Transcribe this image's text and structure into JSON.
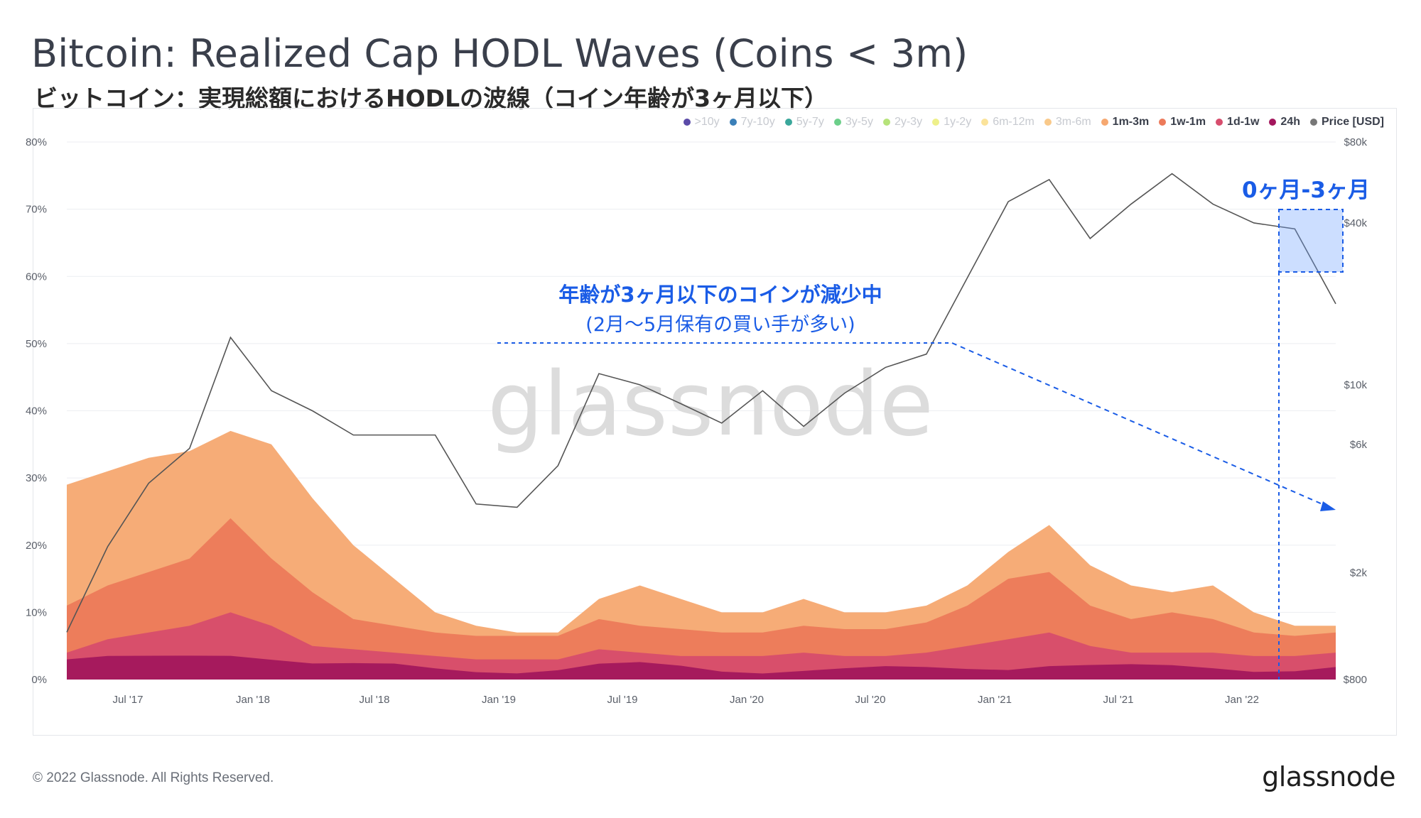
{
  "title": "Bitcoin: Realized Cap HODL Waves (Coins < 3m)",
  "subtitle": "ビットコイン：実現総額におけるHODLの波線（コイン年齢が3ヶ月以下）",
  "watermark": "glassnode",
  "footer": {
    "copyright": "© 2022 Glassnode. All Rights Reserved.",
    "logo": "glassnode"
  },
  "annotations": {
    "main_line1": "年齢が3ヶ月以下のコインが減少中",
    "main_line2": "(2月〜5月保有の買い手が多い)",
    "box_label": "0ヶ月-3ヶ月",
    "accent_color": "#1a5ce6"
  },
  "legend": [
    {
      "label": ">10y",
      "color": "#5b4ba8",
      "active": false
    },
    {
      "label": "7y-10y",
      "color": "#3b7fb8",
      "active": false
    },
    {
      "label": "5y-7y",
      "color": "#3aa79b",
      "active": false
    },
    {
      "label": "3y-5y",
      "color": "#6ccf8a",
      "active": false
    },
    {
      "label": "2y-3y",
      "color": "#b6e37a",
      "active": false
    },
    {
      "label": "1y-2y",
      "color": "#eef08a",
      "active": false
    },
    {
      "label": "6m-12m",
      "color": "#fbe39a",
      "active": false
    },
    {
      "label": "3m-6m",
      "color": "#f9c98a",
      "active": false
    },
    {
      "label": "1m-3m",
      "color": "#f6a870",
      "active": true
    },
    {
      "label": "1w-1m",
      "color": "#ec7a5a",
      "active": true
    },
    {
      "label": "1d-1w",
      "color": "#d74d6d",
      "active": true
    },
    {
      "label": "24h",
      "color": "#a3175d",
      "active": true
    },
    {
      "label": "Price [USD]",
      "color": "#777777",
      "active": true
    }
  ],
  "chart_data": {
    "type": "area",
    "stacked": true,
    "x_ticks": [
      "Jul '17",
      "Jan '18",
      "Jul '18",
      "Jan '19",
      "Jul '19",
      "Jan '20",
      "Jul '20",
      "Jan '21",
      "Jul '21",
      "Jan '22"
    ],
    "y_left_ticks": [
      "0%",
      "10%",
      "20%",
      "30%",
      "40%",
      "50%",
      "60%",
      "70%",
      "80%"
    ],
    "y_right_ticks": [
      "$800",
      "$2k",
      "$6k",
      "$10k",
      "$40k",
      "$80k"
    ],
    "y_left_range": [
      0,
      80
    ],
    "y_right_scale": "log",
    "y_right_range": [
      800,
      80000
    ],
    "grid": true,
    "legend_position": "top-right",
    "x": [
      "2017-04",
      "2017-06",
      "2017-08",
      "2017-10",
      "2017-12",
      "2018-02",
      "2018-04",
      "2018-06",
      "2018-08",
      "2018-10",
      "2018-12",
      "2019-02",
      "2019-04",
      "2019-06",
      "2019-08",
      "2019-10",
      "2019-12",
      "2020-02",
      "2020-04",
      "2020-06",
      "2020-08",
      "2020-10",
      "2020-12",
      "2021-02",
      "2021-04",
      "2021-06",
      "2021-08",
      "2021-10",
      "2021-12",
      "2022-02",
      "2022-04",
      "2022-06"
    ],
    "series": [
      {
        "name": "24h",
        "values": [
          3,
          3,
          3,
          3.5,
          4,
          3.5,
          2.5,
          2,
          1.8,
          1.5,
          1.5,
          1.5,
          1.6,
          2,
          2,
          1.8,
          1.5,
          1.5,
          1.6,
          1.4,
          1.4,
          1.5,
          1.8,
          2,
          2.4,
          2,
          1.7,
          1.7,
          1.8,
          1.7,
          1.7,
          1.8
        ]
      },
      {
        "name": "1d-1w",
        "values": [
          4,
          6,
          7,
          8,
          10,
          8,
          5,
          4.5,
          4,
          3.5,
          3,
          3,
          3,
          4.5,
          4,
          3.5,
          3.5,
          3.5,
          4,
          3.5,
          3.5,
          4,
          5,
          6,
          7,
          5,
          4,
          4,
          4,
          3.5,
          3.5,
          4
        ]
      },
      {
        "name": "1w-1m",
        "values": [
          11,
          14,
          16,
          18,
          24,
          18,
          13,
          9,
          8,
          7,
          6.5,
          6.5,
          6.5,
          9,
          8,
          7.5,
          7,
          7,
          8,
          7.5,
          7.5,
          8.5,
          11,
          15,
          16,
          11,
          9,
          10,
          9,
          7,
          6.5,
          7
        ]
      },
      {
        "name": "1m-3m",
        "values": [
          29,
          31,
          33,
          34,
          37,
          35,
          27,
          20,
          15,
          10,
          8,
          7,
          7,
          12,
          14,
          12,
          10,
          10,
          12,
          10,
          10,
          11,
          14,
          19,
          23,
          17,
          14,
          13,
          14,
          10,
          8,
          8
        ]
      },
      {
        "name": "Price [USD]",
        "values": [
          1200,
          2500,
          4300,
          5800,
          15000,
          9500,
          8000,
          6500,
          6500,
          6500,
          3600,
          3500,
          5000,
          11000,
          10000,
          8500,
          7200,
          9500,
          7000,
          9300,
          11600,
          13000,
          25000,
          48000,
          58000,
          35000,
          47000,
          61000,
          47000,
          40000,
          38000,
          20000
        ]
      }
    ]
  }
}
